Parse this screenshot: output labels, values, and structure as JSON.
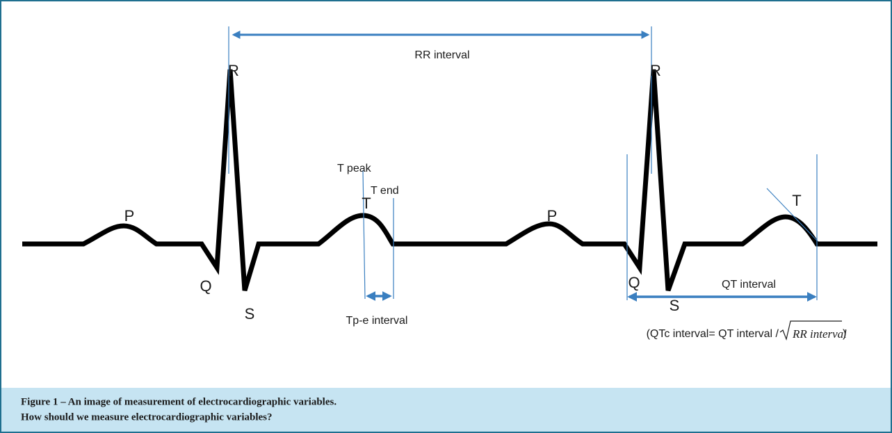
{
  "labels": {
    "rr_interval": "RR interval",
    "r1": "R",
    "r2": "R",
    "t_peak": "T peak",
    "t_end": "T end",
    "t1": "T",
    "p1": "P",
    "q1": "Q",
    "s1": "S",
    "tpe_interval": "Tp-e interval",
    "p2": "P",
    "t2": "T",
    "q2": "Q",
    "s2": "S",
    "qt_interval": "QT interval",
    "qtc_prefix": "(QTc interval= QT interval /",
    "qtc_radicand": "RR interval",
    "qtc_suffix": ")"
  },
  "caption": {
    "title": "Figure 1 – An image of measurement of electrocardiographic variables.",
    "subtitle": "How should we measure electrocardiographic variables?"
  }
}
